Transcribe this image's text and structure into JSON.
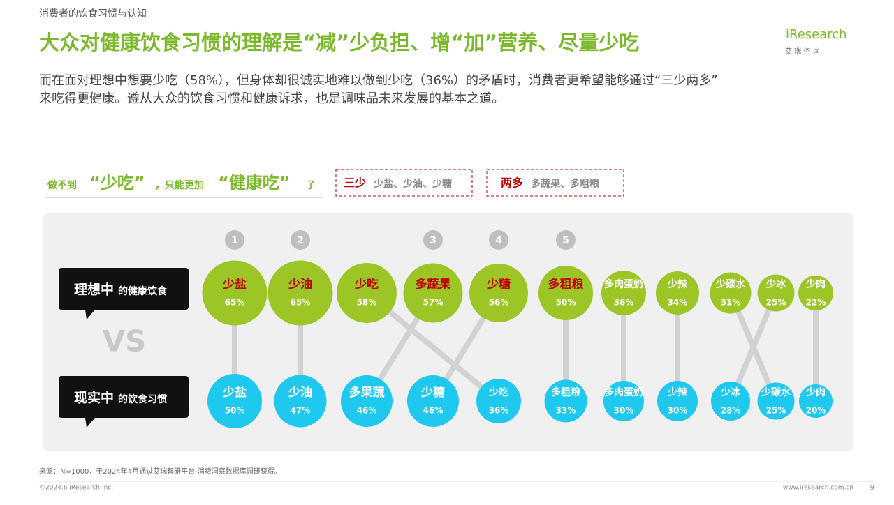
{
  "header": {
    "section": "消费者的饮食习惯与认知",
    "title": "大众对健康饮食习惯的理解是“减”少负担、增“加”营养、尽量少吃",
    "subtitle_lines": [
      "而在面对理想中想要少吃（58%），但身体却很诚实地难以做到少吃（36%）的矛盾时，消费者更希望能够通过“三少两多”",
      "来吃得更健康。遵从大众的饮食习惯和健康诉求，也是调味品未来发展的基本之道。"
    ],
    "logo": "iResearch",
    "logo_sub": "艾 瑞 咨 询"
  },
  "legend": {
    "parts": [
      "做不到",
      "“少吃”",
      "，只能更加",
      "“健康吃”",
      "了"
    ],
    "three_less": {
      "key": "三少",
      "text": "少盐、少油、少糖"
    },
    "two_more": {
      "key": "两多",
      "text": "多蔬果、多粗粮"
    }
  },
  "chart_data": {
    "type": "bubble-compare",
    "vs": "VS",
    "rows": [
      {
        "label_big": "理想中",
        "label_small": "的健康饮食",
        "color": "#9cc626",
        "categories": [
          "少盐",
          "少油",
          "少吃",
          "多蔬果",
          "少糖",
          "多粗粮",
          "多肉蛋奶",
          "少辣",
          "少碳水",
          "少冰",
          "少肉"
        ],
        "values": [
          65,
          65,
          58,
          57,
          56,
          50,
          36,
          34,
          31,
          25,
          22
        ],
        "value_labels": [
          "65%",
          "65%",
          "58%",
          "57%",
          "56%",
          "50%",
          "36%",
          "34%",
          "31%",
          "25%",
          "22%"
        ],
        "ranks": [
          "1",
          "2",
          null,
          "3",
          "4",
          "5",
          null,
          null,
          null,
          null,
          null
        ]
      },
      {
        "label_big": "现实中",
        "label_small": "的饮食习惯",
        "color": "#1ec8ef",
        "categories": [
          "少盐",
          "少油",
          "多果蔬",
          "少糖",
          "少吃",
          "多粗粮",
          "多肉蛋奶",
          "少辣",
          "少冰",
          "少碳水",
          "少肉"
        ],
        "values": [
          50,
          47,
          46,
          46,
          36,
          33,
          30,
          30,
          28,
          25,
          20
        ],
        "value_labels": [
          "50%",
          "47%",
          "46%",
          "46%",
          "36%",
          "33%",
          "30%",
          "30%",
          "28%",
          "25%",
          "20%"
        ]
      }
    ]
  },
  "footer": {
    "source": "来源：N=1000，于2024年4月通过艾瑞智研平台-消费洞察数据库调研获得。",
    "copyright": "©2024.6 iResearch Inc.",
    "url": "www.iresearch.com.cn",
    "page": "9"
  }
}
